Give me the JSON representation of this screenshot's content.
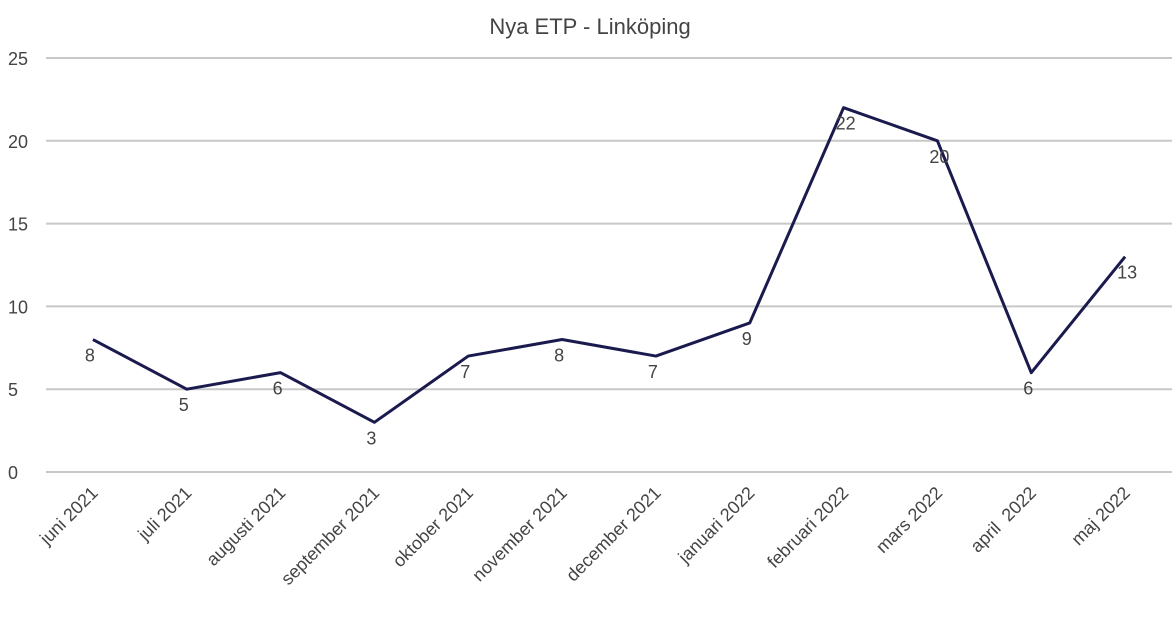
{
  "chart_data": {
    "type": "line",
    "title": "Nya ETP - Linköping",
    "categories": [
      "juni 2021",
      "juli 2021",
      "augusti 2021",
      "september 2021",
      "oktober 2021",
      "november 2021",
      "december 2021",
      "januari 2022",
      "februari 2022",
      "mars 2022",
      "april  2022",
      "maj 2022"
    ],
    "series": [
      {
        "name": "Nya ETP",
        "color": "#1a1a4e",
        "values": [
          8,
          5,
          6,
          3,
          7,
          8,
          7,
          9,
          22,
          20,
          6,
          13
        ]
      }
    ],
    "ylim": [
      0,
      25
    ],
    "yticks": [
      0,
      5,
      10,
      15,
      20,
      25
    ],
    "grid": true
  }
}
